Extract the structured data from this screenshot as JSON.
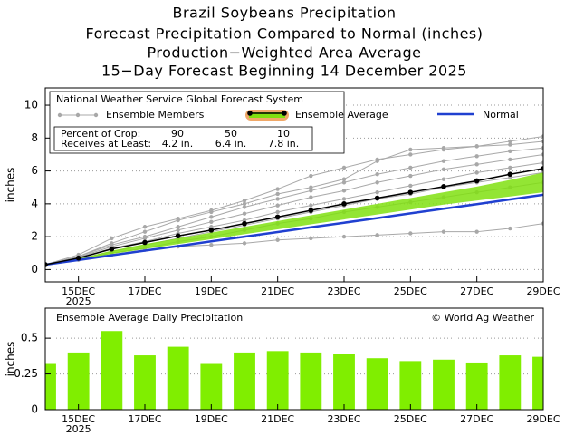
{
  "titles": [
    "Brazil Soybeans Precipitation",
    "Forecast Precipitation Compared to Normal (inches)",
    "Production−Weighted Area Average",
    "15−Day Forecast Beginning 14 December 2025"
  ],
  "chart_data": [
    {
      "type": "line",
      "title": "National Weather Service Global Forecast System",
      "y_label": "inches",
      "x": [
        14,
        15,
        16,
        17,
        18,
        19,
        20,
        21,
        22,
        23,
        24,
        25,
        26,
        27,
        28,
        29
      ],
      "xlim": [
        14,
        29
      ],
      "xticks": [
        {
          "value": 15,
          "label": "15DEC"
        },
        {
          "value": 17,
          "label": "17DEC"
        },
        {
          "value": 19,
          "label": "19DEC"
        },
        {
          "value": 21,
          "label": "21DEC"
        },
        {
          "value": 23,
          "label": "23DEC"
        },
        {
          "value": 25,
          "label": "25DEC"
        },
        {
          "value": 27,
          "label": "27DEC"
        },
        {
          "value": 29,
          "label": "29DEC"
        }
      ],
      "xtick_sublabel": "2025",
      "ylim": [
        -0.75,
        11.05
      ],
      "yticks": [
        0,
        2,
        4,
        6,
        8,
        10
      ],
      "grid": true,
      "series": [
        {
          "name": "Ensemble Members",
          "color": "#a8a8a8",
          "members": [
            [
              0.3,
              0.9,
              1.9,
              2.6,
              3.1,
              3.6,
              4.2,
              4.9,
              5.7,
              6.2,
              6.7,
              7.0,
              7.3,
              7.5,
              7.8,
              8.1
            ],
            [
              0.3,
              0.8,
              1.6,
              2.3,
              3.0,
              3.5,
              4.0,
              4.6,
              5.0,
              5.5,
              6.6,
              7.3,
              7.4,
              7.5,
              7.6,
              7.8
            ],
            [
              0.3,
              0.8,
              1.5,
              2.0,
              2.6,
              3.2,
              3.8,
              4.3,
              4.8,
              5.3,
              5.8,
              6.2,
              6.6,
              6.9,
              7.2,
              7.4
            ],
            [
              0.3,
              0.75,
              1.4,
              1.9,
              2.4,
              2.9,
              3.4,
              3.9,
              4.4,
              4.8,
              5.3,
              5.7,
              6.1,
              6.4,
              6.7,
              7.0
            ],
            [
              0.3,
              0.7,
              1.3,
              1.7,
              2.2,
              2.6,
              3.0,
              3.5,
              3.9,
              4.3,
              4.7,
              5.1,
              5.5,
              5.9,
              6.2,
              6.5
            ],
            [
              0.3,
              0.65,
              1.1,
              1.5,
              1.9,
              2.3,
              2.7,
              3.1,
              3.5,
              3.9,
              4.3,
              4.6,
              5.0,
              5.3,
              5.6,
              5.9
            ],
            [
              0.3,
              0.6,
              1.0,
              1.3,
              1.7,
              2.0,
              2.4,
              2.8,
              3.1,
              3.5,
              3.8,
              4.1,
              4.4,
              4.7,
              5.0,
              5.3
            ],
            [
              0.3,
              0.6,
              0.9,
              1.2,
              1.4,
              1.5,
              1.6,
              1.8,
              1.9,
              2.0,
              2.1,
              2.2,
              2.3,
              2.3,
              2.5,
              2.8
            ]
          ]
        },
        {
          "name": "Ensemble Average",
          "color": "#000000",
          "legend_halo_color": "#f0a868",
          "values": [
            0.3,
            0.7,
            1.25,
            1.65,
            2.05,
            2.4,
            2.8,
            3.2,
            3.6,
            4.0,
            4.35,
            4.7,
            5.05,
            5.4,
            5.8,
            6.15
          ]
        },
        {
          "name": "Normal",
          "color": "#2040d0",
          "values": [
            0.3,
            0.58,
            0.87,
            1.15,
            1.43,
            1.72,
            2.0,
            2.28,
            2.57,
            2.85,
            3.13,
            3.42,
            3.7,
            3.98,
            4.27,
            4.55
          ]
        }
      ],
      "band": {
        "color": "#80e010",
        "lower": [
          0.3,
          0.6,
          0.95,
          1.25,
          1.55,
          1.85,
          2.15,
          2.45,
          2.75,
          3.05,
          3.35,
          3.65,
          3.95,
          4.2,
          4.45,
          4.7
        ],
        "upper": [
          0.3,
          0.65,
          1.15,
          1.55,
          1.9,
          2.25,
          2.6,
          2.95,
          3.3,
          3.65,
          4.0,
          4.35,
          4.7,
          5.05,
          5.45,
          5.9
        ]
      },
      "crop_table": {
        "header": "Percent of Crop:",
        "percents": [
          90,
          50,
          10
        ],
        "row_label": "Receives at Least:",
        "amounts": [
          {
            "value": 4.2,
            "label": "4.2 in."
          },
          {
            "value": 6.4,
            "label": "6.4 in."
          },
          {
            "value": 7.8,
            "label": "7.8 in."
          }
        ]
      }
    },
    {
      "type": "bar",
      "title": "Ensemble Average Daily Precipitation",
      "credit": "© World Ag Weather",
      "y_label": "inches",
      "x": [
        14,
        15,
        16,
        17,
        18,
        19,
        20,
        21,
        22,
        23,
        24,
        25,
        26,
        27,
        28,
        29
      ],
      "xlim": [
        14,
        29
      ],
      "xticks": [
        {
          "value": 15,
          "label": "15DEC"
        },
        {
          "value": 17,
          "label": "17DEC"
        },
        {
          "value": 19,
          "label": "19DEC"
        },
        {
          "value": 21,
          "label": "21DEC"
        },
        {
          "value": 23,
          "label": "23DEC"
        },
        {
          "value": 25,
          "label": "25DEC"
        },
        {
          "value": 27,
          "label": "27DEC"
        },
        {
          "value": 29,
          "label": "29DEC"
        }
      ],
      "xtick_sublabel": "2025",
      "ylim": [
        0,
        0.71
      ],
      "yticks": [
        0,
        0.25,
        0.5
      ],
      "grid": true,
      "color": "#80ee00",
      "values": [
        0.32,
        0.4,
        0.55,
        0.38,
        0.44,
        0.32,
        0.4,
        0.41,
        0.4,
        0.39,
        0.36,
        0.34,
        0.35,
        0.33,
        0.38,
        0.37
      ]
    }
  ]
}
